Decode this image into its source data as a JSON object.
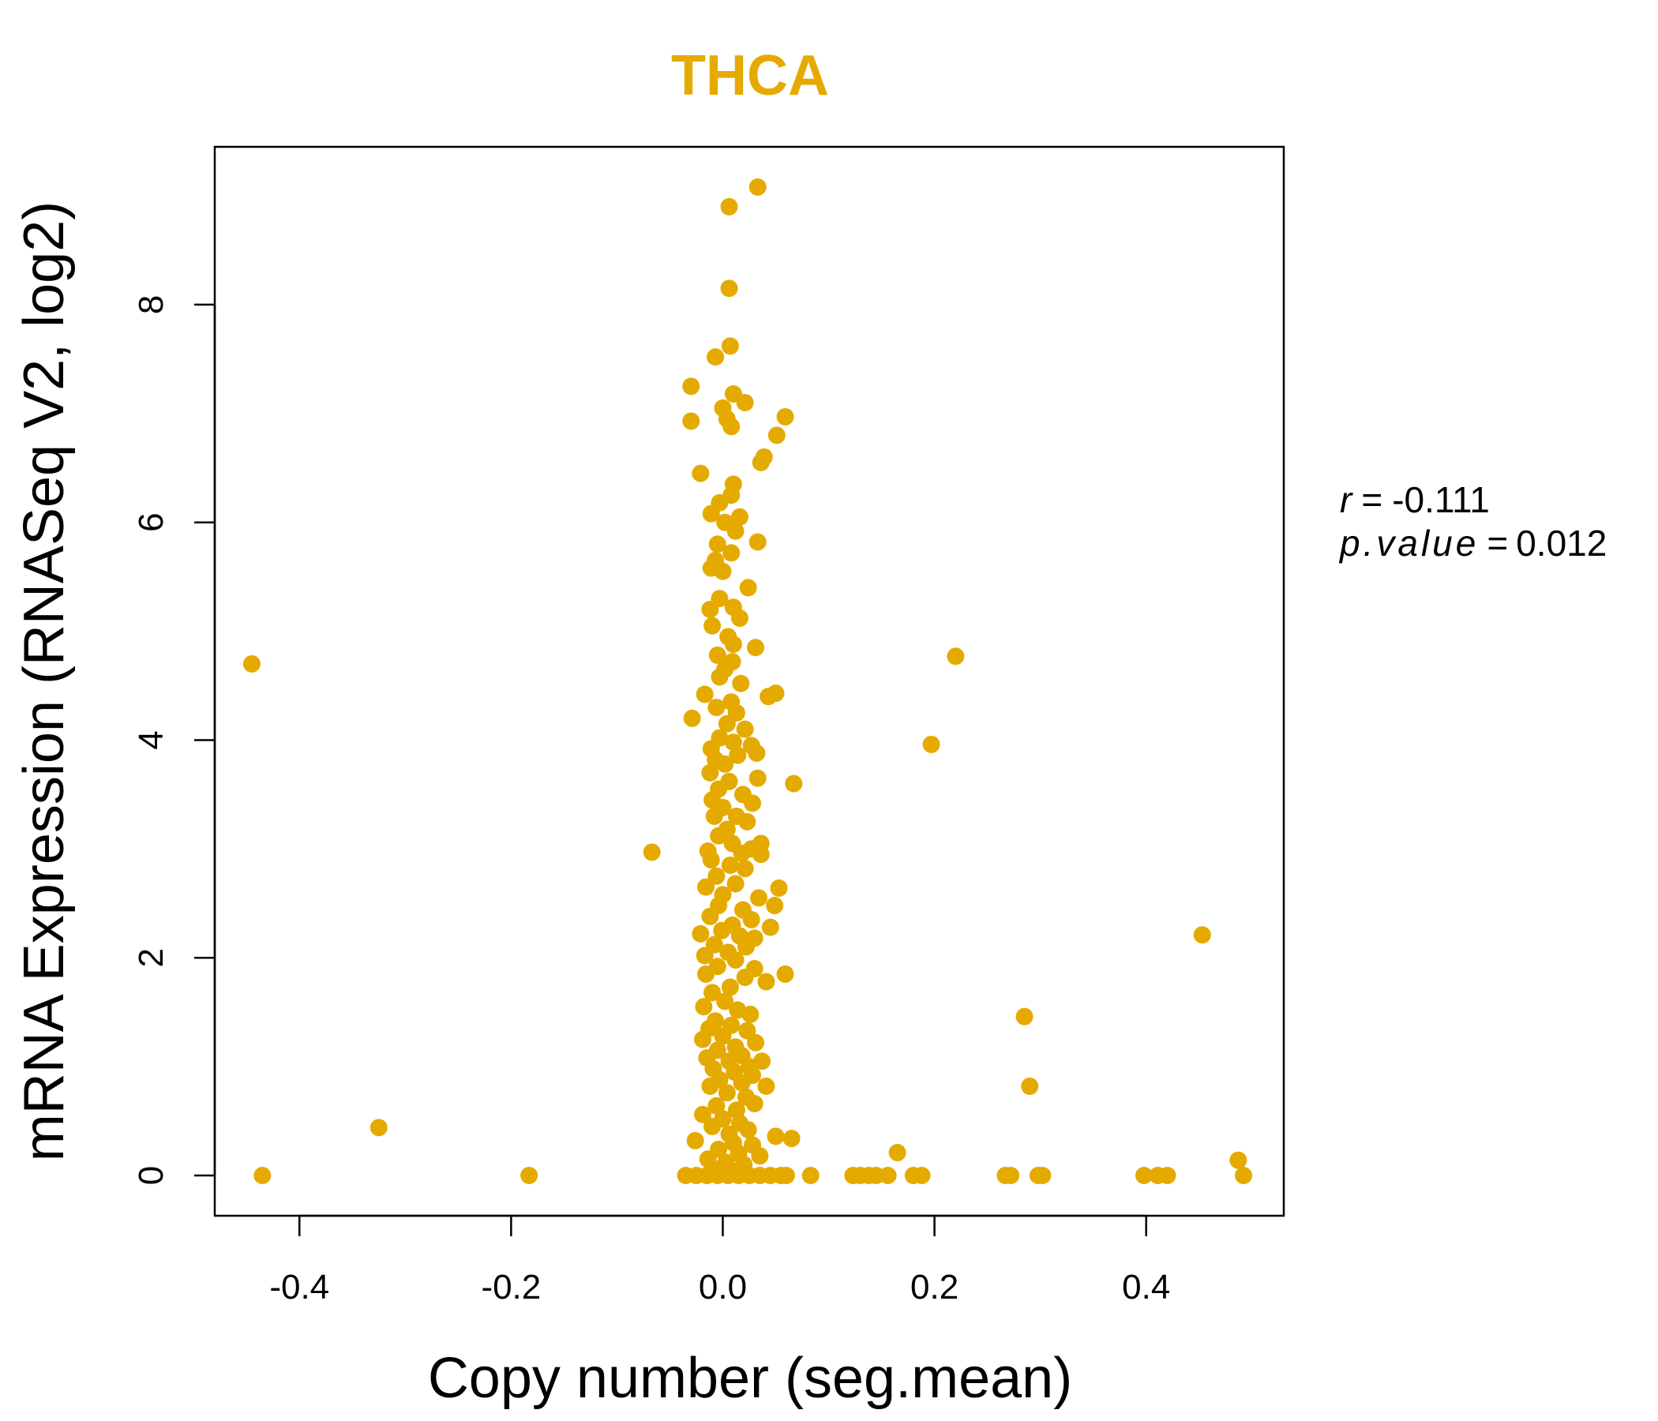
{
  "chart_data": {
    "type": "scatter",
    "title": "THCA",
    "xlabel": "Copy number (seg.mean)",
    "ylabel": "mRNA Expression (RNASeq V2, log2)",
    "xlim": [
      -0.48,
      0.53
    ],
    "ylim": [
      -0.37,
      9.45
    ],
    "x_ticks": [
      -0.4,
      -0.2,
      0.0,
      0.2,
      0.4
    ],
    "x_tick_labels": [
      "-0.4",
      "-0.2",
      "0.0",
      "0.2",
      "0.4"
    ],
    "y_ticks": [
      0,
      2,
      4,
      6,
      8
    ],
    "y_tick_labels": [
      "0",
      "2",
      "4",
      "6",
      "8"
    ],
    "point_color": "#E5AA00",
    "title_color": "#E5AA00",
    "stats": {
      "r_label": "r",
      "r_value": "-0.111",
      "p_label": "p.value",
      "p_value": "0.012"
    },
    "points": [
      [
        -0.445,
        4.7
      ],
      [
        -0.435,
        0.0
      ],
      [
        -0.325,
        0.44
      ],
      [
        -0.183,
        0.0
      ],
      [
        -0.067,
        2.97
      ],
      [
        0.033,
        9.08
      ],
      [
        0.006,
        8.9
      ],
      [
        0.006,
        8.15
      ],
      [
        0.007,
        7.62
      ],
      [
        -0.007,
        7.52
      ],
      [
        -0.03,
        7.25
      ],
      [
        0.01,
        7.18
      ],
      [
        0.021,
        7.1
      ],
      [
        0.0,
        7.05
      ],
      [
        0.004,
        6.95
      ],
      [
        -0.03,
        6.93
      ],
      [
        0.008,
        6.88
      ],
      [
        0.059,
        6.97
      ],
      [
        0.051,
        6.8
      ],
      [
        0.039,
        6.6
      ],
      [
        0.036,
        6.55
      ],
      [
        -0.021,
        6.45
      ],
      [
        0.01,
        6.35
      ],
      [
        0.008,
        6.25
      ],
      [
        -0.003,
        6.18
      ],
      [
        -0.011,
        6.08
      ],
      [
        0.016,
        6.05
      ],
      [
        0.002,
        6.0
      ],
      [
        0.012,
        5.92
      ],
      [
        0.033,
        5.82
      ],
      [
        -0.005,
        5.8
      ],
      [
        0.008,
        5.72
      ],
      [
        -0.007,
        5.65
      ],
      [
        0.0,
        5.55
      ],
      [
        -0.011,
        5.58
      ],
      [
        0.024,
        5.4
      ],
      [
        -0.003,
        5.3
      ],
      [
        0.01,
        5.22
      ],
      [
        -0.012,
        5.2
      ],
      [
        0.016,
        5.12
      ],
      [
        -0.01,
        5.05
      ],
      [
        0.005,
        4.95
      ],
      [
        0.031,
        4.85
      ],
      [
        0.01,
        4.88
      ],
      [
        -0.005,
        4.78
      ],
      [
        0.009,
        4.72
      ],
      [
        0.002,
        4.65
      ],
      [
        -0.003,
        4.58
      ],
      [
        0.017,
        4.52
      ],
      [
        0.05,
        4.43
      ],
      [
        0.043,
        4.4
      ],
      [
        -0.017,
        4.42
      ],
      [
        0.008,
        4.35
      ],
      [
        -0.006,
        4.3
      ],
      [
        0.013,
        4.25
      ],
      [
        -0.029,
        4.2
      ],
      [
        0.004,
        4.15
      ],
      [
        0.021,
        4.1
      ],
      [
        -0.003,
        4.02
      ],
      [
        0.01,
        3.98
      ],
      [
        0.027,
        3.95
      ],
      [
        -0.011,
        3.92
      ],
      [
        0.014,
        3.86
      ],
      [
        0.032,
        3.88
      ],
      [
        -0.007,
        3.82
      ],
      [
        0.002,
        3.78
      ],
      [
        -0.012,
        3.7
      ],
      [
        0.033,
        3.65
      ],
      [
        0.067,
        3.6
      ],
      [
        0.006,
        3.62
      ],
      [
        -0.004,
        3.55
      ],
      [
        0.019,
        3.5
      ],
      [
        -0.01,
        3.45
      ],
      [
        0.028,
        3.42
      ],
      [
        0.0,
        3.38
      ],
      [
        -0.008,
        3.3
      ],
      [
        0.013,
        3.3
      ],
      [
        0.023,
        3.25
      ],
      [
        0.004,
        3.18
      ],
      [
        -0.004,
        3.12
      ],
      [
        0.009,
        3.05
      ],
      [
        0.036,
        3.05
      ],
      [
        0.027,
        3.0
      ],
      [
        -0.014,
        2.98
      ],
      [
        0.018,
        2.96
      ],
      [
        0.036,
        2.95
      ],
      [
        -0.011,
        2.9
      ],
      [
        0.007,
        2.85
      ],
      [
        0.021,
        2.82
      ],
      [
        -0.006,
        2.75
      ],
      [
        0.012,
        2.68
      ],
      [
        -0.016,
        2.65
      ],
      [
        0.053,
        2.64
      ],
      [
        0.0,
        2.58
      ],
      [
        0.034,
        2.55
      ],
      [
        -0.004,
        2.48
      ],
      [
        0.049,
        2.48
      ],
      [
        0.019,
        2.44
      ],
      [
        -0.012,
        2.38
      ],
      [
        0.027,
        2.35
      ],
      [
        0.009,
        2.3
      ],
      [
        0.045,
        2.28
      ],
      [
        -0.001,
        2.25
      ],
      [
        -0.021,
        2.22
      ],
      [
        0.016,
        2.2
      ],
      [
        0.03,
        2.18
      ],
      [
        -0.008,
        2.12
      ],
      [
        0.022,
        2.1
      ],
      [
        0.005,
        2.05
      ],
      [
        -0.017,
        2.02
      ],
      [
        0.012,
        1.98
      ],
      [
        -0.005,
        1.92
      ],
      [
        0.03,
        1.9
      ],
      [
        0.059,
        1.85
      ],
      [
        -0.016,
        1.85
      ],
      [
        0.021,
        1.82
      ],
      [
        0.041,
        1.78
      ],
      [
        0.007,
        1.73
      ],
      [
        -0.01,
        1.68
      ],
      [
        0.002,
        1.6
      ],
      [
        -0.018,
        1.55
      ],
      [
        0.014,
        1.52
      ],
      [
        0.026,
        1.48
      ],
      [
        -0.007,
        1.42
      ],
      [
        0.008,
        1.38
      ],
      [
        -0.013,
        1.35
      ],
      [
        0.023,
        1.33
      ],
      [
        0.0,
        1.28
      ],
      [
        -0.019,
        1.25
      ],
      [
        0.031,
        1.22
      ],
      [
        0.012,
        1.18
      ],
      [
        -0.005,
        1.15
      ],
      [
        0.018,
        1.1
      ],
      [
        -0.015,
        1.08
      ],
      [
        0.006,
        1.05
      ],
      [
        0.037,
        1.05
      ],
      [
        0.025,
        1.0
      ],
      [
        -0.009,
        0.98
      ],
      [
        0.011,
        0.95
      ],
      [
        0.028,
        0.92
      ],
      [
        -0.003,
        0.88
      ],
      [
        0.018,
        0.85
      ],
      [
        0.041,
        0.82
      ],
      [
        -0.012,
        0.82
      ],
      [
        0.004,
        0.76
      ],
      [
        0.022,
        0.72
      ],
      [
        0.03,
        0.66
      ],
      [
        -0.006,
        0.64
      ],
      [
        0.013,
        0.6
      ],
      [
        -0.019,
        0.56
      ],
      [
        0.0,
        0.52
      ],
      [
        0.016,
        0.48
      ],
      [
        -0.01,
        0.45
      ],
      [
        0.024,
        0.42
      ],
      [
        0.006,
        0.38
      ],
      [
        0.05,
        0.36
      ],
      [
        0.065,
        0.34
      ],
      [
        -0.026,
        0.32
      ],
      [
        0.01,
        0.3
      ],
      [
        0.028,
        0.28
      ],
      [
        -0.004,
        0.24
      ],
      [
        0.015,
        0.2
      ],
      [
        0.035,
        0.18
      ],
      [
        -0.014,
        0.15
      ],
      [
        0.003,
        0.12
      ],
      [
        0.02,
        0.1
      ],
      [
        -0.008,
        0.06
      ],
      [
        0.011,
        0.04
      ],
      [
        -0.035,
        0.0
      ],
      [
        -0.025,
        0.0
      ],
      [
        -0.015,
        0.0
      ],
      [
        -0.005,
        0.0
      ],
      [
        0.005,
        0.0
      ],
      [
        0.015,
        0.0
      ],
      [
        0.025,
        0.0
      ],
      [
        0.035,
        0.0
      ],
      [
        0.045,
        0.0
      ],
      [
        0.055,
        0.0
      ],
      [
        0.06,
        0.0
      ],
      [
        0.083,
        0.0
      ],
      [
        0.165,
        0.21
      ],
      [
        0.22,
        4.77
      ],
      [
        0.197,
        3.96
      ],
      [
        0.123,
        0.0
      ],
      [
        0.13,
        0.0
      ],
      [
        0.138,
        0.0
      ],
      [
        0.145,
        0.0
      ],
      [
        0.156,
        0.0
      ],
      [
        0.18,
        0.0
      ],
      [
        0.188,
        0.0
      ],
      [
        0.267,
        0.0
      ],
      [
        0.272,
        0.0
      ],
      [
        0.298,
        0.0
      ],
      [
        0.302,
        0.0
      ],
      [
        0.285,
        1.46
      ],
      [
        0.29,
        0.82
      ],
      [
        0.398,
        0.0
      ],
      [
        0.411,
        0.0
      ],
      [
        0.42,
        0.0
      ],
      [
        0.453,
        2.21
      ],
      [
        0.487,
        0.14
      ],
      [
        0.492,
        0.0
      ]
    ]
  }
}
